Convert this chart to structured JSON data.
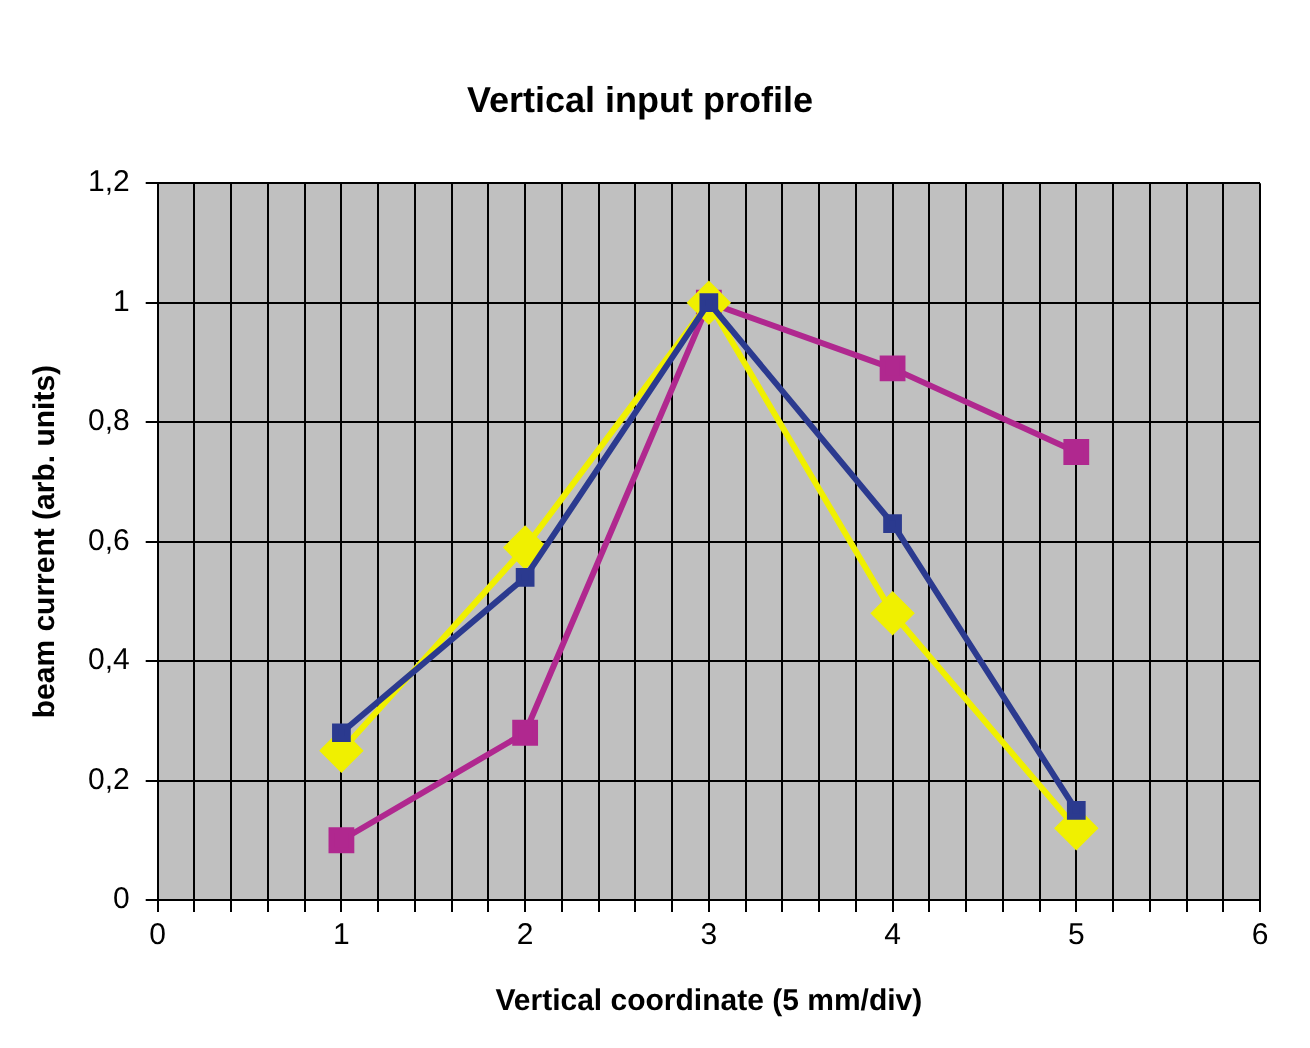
{
  "chart_data": {
    "type": "line",
    "title": "Vertical input profile",
    "xlabel": "Vertical coordinate (5 mm/div)",
    "ylabel": "beam current (arb. units)",
    "x": [
      1,
      2,
      3,
      4,
      5
    ],
    "series": [
      {
        "color": "#2b3a8f",
        "marker": "square",
        "values": [
          0.28,
          0.54,
          1.0,
          0.63,
          0.15
        ]
      },
      {
        "color": "#f0f000",
        "marker": "diamond",
        "values": [
          0.25,
          0.59,
          1.0,
          0.48,
          0.12
        ]
      },
      {
        "color": "#b0288f",
        "marker": "square",
        "values": [
          0.1,
          0.28,
          1.0,
          0.89,
          0.75
        ]
      }
    ],
    "xlim": [
      0,
      6
    ],
    "xticks": [
      0,
      {
        "value": 0.2,
        "label": null
      },
      {
        "value": 0.4,
        "label": null
      },
      {
        "value": 0.6,
        "label": null
      },
      {
        "value": 0.8,
        "label": null
      },
      1,
      {
        "value": 1.2,
        "label": null
      },
      {
        "value": 1.4,
        "label": null
      },
      {
        "value": 1.6,
        "label": null
      },
      {
        "value": 1.8,
        "label": null
      },
      2,
      {
        "value": 2.2,
        "label": null
      },
      {
        "value": 2.4,
        "label": null
      },
      {
        "value": 2.6,
        "label": null
      },
      {
        "value": 2.8,
        "label": null
      },
      3,
      {
        "value": 3.2,
        "label": null
      },
      {
        "value": 3.4,
        "label": null
      },
      {
        "value": 3.6,
        "label": null
      },
      {
        "value": 3.8,
        "label": null
      },
      4,
      {
        "value": 4.2,
        "label": null
      },
      {
        "value": 4.4,
        "label": null
      },
      {
        "value": 4.6,
        "label": null
      },
      {
        "value": 4.8,
        "label": null
      },
      5,
      {
        "value": 5.2,
        "label": null
      },
      {
        "value": 5.4,
        "label": null
      },
      {
        "value": 5.6,
        "label": null
      },
      {
        "value": 5.8,
        "label": null
      },
      6
    ],
    "ylim": [
      0,
      1.2
    ],
    "yticks": [
      0,
      {
        "value": 0.2,
        "label": "0,2"
      },
      {
        "value": 0.4,
        "label": "0,4"
      },
      {
        "value": 0.6,
        "label": "0,6"
      },
      {
        "value": 0.8,
        "label": "0,8"
      },
      1,
      {
        "value": 1.2,
        "label": "1,2"
      }
    ],
    "grid": true,
    "legend": false,
    "line_style": "solid"
  }
}
